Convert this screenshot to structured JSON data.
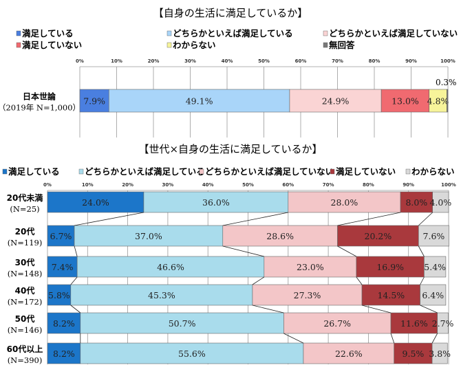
{
  "chart_data": [
    {
      "type": "bar",
      "stacked": true,
      "orientation": "horizontal",
      "title": "【自身の生活に満足しているか】",
      "xlim": [
        0,
        100
      ],
      "x_ticks": [
        "0%",
        "10%",
        "20%",
        "30%",
        "40%",
        "50%",
        "60%",
        "70%",
        "80%",
        "90%",
        "100%"
      ],
      "legend_position": "top",
      "categories": [
        {
          "label": "日本世論",
          "sub": "（2019年 N=1,000）"
        }
      ],
      "series": [
        {
          "name": "満足している",
          "color": "#4a7fe0",
          "values": [
            7.9
          ]
        },
        {
          "name": "どちらかといえば満足している",
          "color": "#a9d5f9",
          "values": [
            49.1
          ]
        },
        {
          "name": "どちらかといえば満足していない",
          "color": "#fad4d4",
          "values": [
            24.9
          ]
        },
        {
          "name": "満足していない",
          "color": "#f06a70",
          "values": [
            13.0
          ]
        },
        {
          "name": "わからない",
          "color": "#f7f49a",
          "values": [
            4.8
          ]
        },
        {
          "name": "無回答",
          "color": "#7a7a7a",
          "values": [
            0.3
          ]
        }
      ],
      "data_labels": [
        [
          "7.9%",
          "49.1%",
          "24.9%",
          "13.0%",
          "4.8%",
          "0.3%"
        ]
      ]
    },
    {
      "type": "bar",
      "stacked": true,
      "orientation": "horizontal",
      "title": "【世代×自身の生活に満足しているか】",
      "xlim": [
        0,
        100
      ],
      "x_ticks": [
        "0%",
        "10%",
        "20%",
        "30%",
        "40%",
        "50%",
        "60%",
        "70%",
        "80%",
        "90%",
        "100%"
      ],
      "legend_position": "top",
      "categories": [
        {
          "label": "20代未満",
          "sub": "(N=25)"
        },
        {
          "label": "20代",
          "sub": "(N=119)"
        },
        {
          "label": "30代",
          "sub": "(N=148)"
        },
        {
          "label": "40代",
          "sub": "(N=172)"
        },
        {
          "label": "50代",
          "sub": "(N=146)"
        },
        {
          "label": "60代以上",
          "sub": "(N=390)"
        }
      ],
      "series": [
        {
          "name": "満足している",
          "color": "#1c76c9",
          "values": [
            24.0,
            6.7,
            7.4,
            5.8,
            8.2,
            8.2
          ]
        },
        {
          "name": "どちらかといえば満足している",
          "color": "#a9dcec",
          "values": [
            36.0,
            37.0,
            46.6,
            45.3,
            50.7,
            55.6
          ]
        },
        {
          "name": "どちらかといえば満足していない",
          "color": "#f3c6c8",
          "values": [
            28.0,
            28.6,
            23.0,
            27.3,
            26.7,
            22.6
          ]
        },
        {
          "name": "満足していない",
          "color": "#a9393d",
          "values": [
            8.0,
            20.2,
            16.9,
            14.5,
            11.6,
            9.5
          ]
        },
        {
          "name": "わからない",
          "color": "#d9d9d9",
          "values": [
            4.0,
            7.6,
            5.4,
            6.4,
            2.7,
            3.8
          ]
        }
      ],
      "data_labels": [
        [
          "24.0%",
          "36.0%",
          "28.0%",
          "8.0%",
          "4.0%"
        ],
        [
          "6.7%",
          "37.0%",
          "28.6%",
          "20.2%",
          "7.6%"
        ],
        [
          "7.4%",
          "46.6%",
          "23.0%",
          "16.9%",
          "5.4%"
        ],
        [
          "5.8%",
          "45.3%",
          "27.3%",
          "14.5%",
          "6.4%"
        ],
        [
          "8.2%",
          "50.7%",
          "26.7%",
          "11.6%",
          "2.7%"
        ],
        [
          "8.2%",
          "55.6%",
          "22.6%",
          "9.5%",
          "3.8%"
        ]
      ]
    }
  ]
}
